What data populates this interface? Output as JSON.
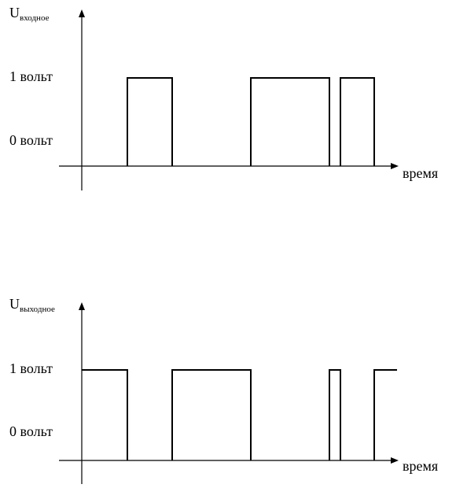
{
  "input": {
    "axis_label": {
      "symbol": "U",
      "subscript": "входное"
    },
    "level_high": "1 вольт",
    "level_low": "0 вольт",
    "time_label": "время"
  },
  "output": {
    "axis_label": {
      "symbol": "U",
      "subscript": "выходное"
    },
    "level_high": "1 вольт",
    "level_low": "0 вольт",
    "time_label": "время"
  }
}
